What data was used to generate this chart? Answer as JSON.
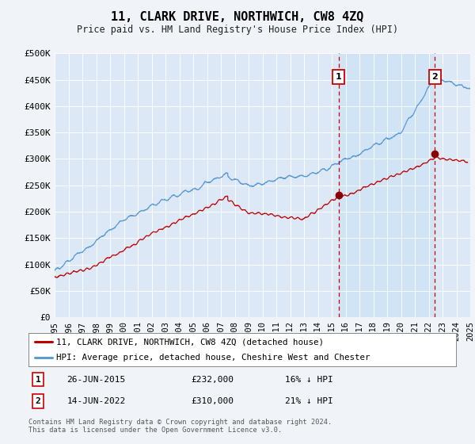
{
  "title": "11, CLARK DRIVE, NORTHWICH, CW8 4ZQ",
  "subtitle": "Price paid vs. HM Land Registry's House Price Index (HPI)",
  "ylabel_ticks": [
    "£0",
    "£50K",
    "£100K",
    "£150K",
    "£200K",
    "£250K",
    "£300K",
    "£350K",
    "£400K",
    "£450K",
    "£500K"
  ],
  "ytick_values": [
    0,
    50000,
    100000,
    150000,
    200000,
    250000,
    300000,
    350000,
    400000,
    450000,
    500000
  ],
  "ylim": [
    0,
    500000
  ],
  "hpi_color": "#5b9bd5",
  "property_color": "#c00000",
  "background_color": "#f0f4f8",
  "plot_bg_color": "#dce8f5",
  "shade_color": "#d0e4f7",
  "marker1_x": 2015.49,
  "marker1_y": 232000,
  "marker2_x": 2022.45,
  "marker2_y": 310000,
  "marker1_label": "26-JUN-2015",
  "marker1_price": "£232,000",
  "marker1_hpi": "16% ↓ HPI",
  "marker2_label": "14-JUN-2022",
  "marker2_price": "£310,000",
  "marker2_hpi": "21% ↓ HPI",
  "legend_line1": "11, CLARK DRIVE, NORTHWICH, CW8 4ZQ (detached house)",
  "legend_line2": "HPI: Average price, detached house, Cheshire West and Chester",
  "footer": "Contains HM Land Registry data © Crown copyright and database right 2024.\nThis data is licensed under the Open Government Licence v3.0.",
  "xmin": 1995,
  "xmax": 2025
}
